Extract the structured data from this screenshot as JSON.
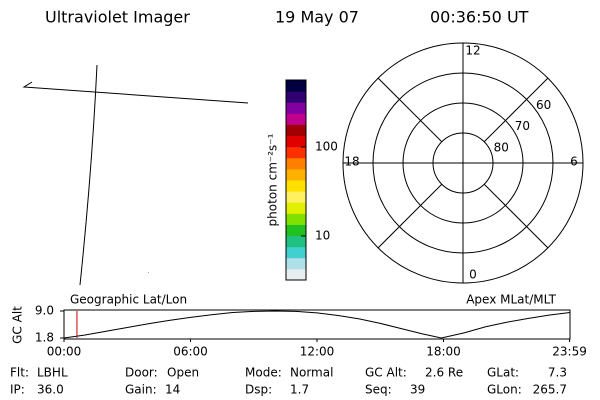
{
  "header": {
    "instrument": "Ultraviolet Imager",
    "date": "19 May 07",
    "time": "00:36:50 UT"
  },
  "chart_data": [
    {
      "type": "colorbar",
      "label": "photon cm⁻²s⁻¹",
      "scale": "log",
      "lim": [
        3.2,
        565
      ],
      "ticks": [
        10,
        100
      ],
      "colors": [
        "#e8eef0",
        "#b0e0e8",
        "#40d0d0",
        "#20c080",
        "#20c020",
        "#80e000",
        "#e0f000",
        "#fff060",
        "#ffe000",
        "#ffb000",
        "#ff8000",
        "#ff3000",
        "#e00000",
        "#a00000",
        "#c0008c",
        "#8000a0",
        "#300070",
        "#000040"
      ]
    },
    {
      "type": "polar",
      "rlim": [
        90,
        50
      ],
      "rticks": [
        80,
        70,
        60
      ],
      "mlt_ticks": [
        12,
        18,
        6,
        0
      ]
    },
    {
      "type": "line",
      "ylabel": "GC Alt",
      "left_label": "Geographic Lat/Lon",
      "right_label": "Apex MLat/MLT",
      "x": [
        0,
        1,
        2,
        3,
        4,
        5,
        6,
        7,
        8,
        9,
        10,
        11,
        12,
        13,
        14,
        15,
        16,
        17,
        17.9,
        19,
        20,
        21,
        22,
        23,
        24
      ],
      "values": [
        1.8,
        2.6,
        3.6,
        4.6,
        5.6,
        6.5,
        7.3,
        8.0,
        8.6,
        8.9,
        9.0,
        8.9,
        8.5,
        7.8,
        6.9,
        5.7,
        4.3,
        2.9,
        1.8,
        3.2,
        4.8,
        6.0,
        7.0,
        7.9,
        8.6
      ],
      "color": "#000000",
      "marker": 0.614,
      "marker_color": "#c00000",
      "ylim": [
        1.8,
        9.0
      ],
      "yticks": [
        1.8,
        {
          "value": 9,
          "label": "9.0"
        }
      ],
      "xlim": [
        0,
        24
      ],
      "xticks": [
        {
          "value": 0,
          "label": "00:00"
        },
        {
          "value": 6,
          "label": "06:00"
        },
        {
          "value": 12,
          "label": "12:00"
        },
        {
          "value": 18,
          "label": "18:00"
        },
        {
          "value": 23.98,
          "label": "23:59"
        }
      ]
    }
  ],
  "info": [
    [
      {
        "label": "Flt:",
        "value": "LBHL"
      },
      {
        "label": "Door:",
        "value": "Open"
      },
      {
        "label": "Mode:",
        "value": "Normal"
      },
      {
        "label": "GC Alt:",
        "value": "2.6 Re"
      },
      {
        "label": "GLat:",
        "value": "7.3"
      }
    ],
    [
      {
        "label": "IP:",
        "value": "36.0"
      },
      {
        "label": "Gain:",
        "value": "14"
      },
      {
        "label": "Dsp:",
        "value": "1.7"
      },
      {
        "label": "Seq:",
        "value": "39"
      },
      {
        "label": "GLon:",
        "value": "265.7"
      }
    ]
  ]
}
